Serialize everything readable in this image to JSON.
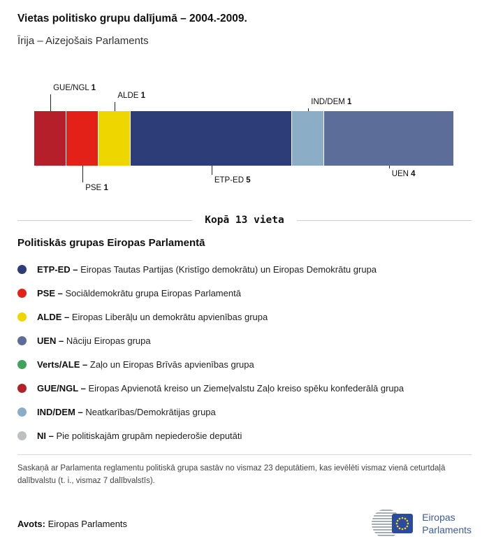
{
  "header": {
    "title": "Vietas politisko grupu dalījumā – 2004.-2009.",
    "subtitle": "Īrija – Aizejošais Parlaments"
  },
  "chart_data": {
    "type": "bar",
    "title": "Vietas politisko grupu dalījumā – 2004.-2009.",
    "subtitle": "Īrija – Aizejošais Parlaments",
    "total_seats": 13,
    "total_label": "Kopā 13 vieta",
    "segments": [
      {
        "name": "GUE/NGL",
        "seats": 1,
        "color": "#b41f29",
        "label_position": "top"
      },
      {
        "name": "PSE",
        "seats": 1,
        "color": "#e32119",
        "label_position": "bottom"
      },
      {
        "name": "ALDE",
        "seats": 1,
        "color": "#eed700",
        "label_position": "top"
      },
      {
        "name": "ETP-ED",
        "seats": 5,
        "color": "#2c3d77",
        "label_position": "bottom"
      },
      {
        "name": "IND/DEM",
        "seats": 1,
        "color": "#8cadc6",
        "label_position": "top"
      },
      {
        "name": "UEN",
        "seats": 4,
        "color": "#5b6d98",
        "label_position": "bottom"
      }
    ]
  },
  "legend": {
    "heading": "Politiskās grupas Eiropas Parlamentā",
    "items": [
      {
        "abbr": "ETP-ED –",
        "name": "Eiropas Tautas Partijas (Kristīgo demokrātu) un Eiropas Demokrātu grupa",
        "color": "#2c3d77"
      },
      {
        "abbr": "PSE –",
        "name": "Sociāldemokrātu grupa Eiropas Parlamentā",
        "color": "#e32119"
      },
      {
        "abbr": "ALDE –",
        "name": "Eiropas Liberāļu un demokrātu apvienības grupa",
        "color": "#eed700"
      },
      {
        "abbr": "UEN –",
        "name": "Nāciju Eiropas grupa",
        "color": "#5b6d98"
      },
      {
        "abbr": "Verts/ALE –",
        "name": "Zaļo un Eiropas Brīvās apvienības grupa",
        "color": "#3fa45b"
      },
      {
        "abbr": "GUE/NGL –",
        "name": "Eiropas Apvienotā kreiso un Ziemeļvalstu Zaļo kreiso spēku konfederālā grupa",
        "color": "#b41f29"
      },
      {
        "abbr": "IND/DEM –",
        "name": "Neatkarības/Demokrātijas grupa",
        "color": "#8cadc6"
      },
      {
        "abbr": "NI –",
        "name": "Pie politiskajām grupām nepiederošie deputāti",
        "color": "#bcbfc3"
      }
    ]
  },
  "footnote": "Saskaņā ar Parlamenta reglamentu politiskā grupa sastāv no vismaz 23 deputātiem, kas ievēlēti vismaz vienā ceturtdaļā dalībvalstu (t. i., vismaz 7 dalībvalstīs).",
  "source": {
    "label": "Avots:",
    "value": "Eiropas Parlaments"
  },
  "logo": {
    "line1": "Eiropas",
    "line2": "Parlaments"
  }
}
